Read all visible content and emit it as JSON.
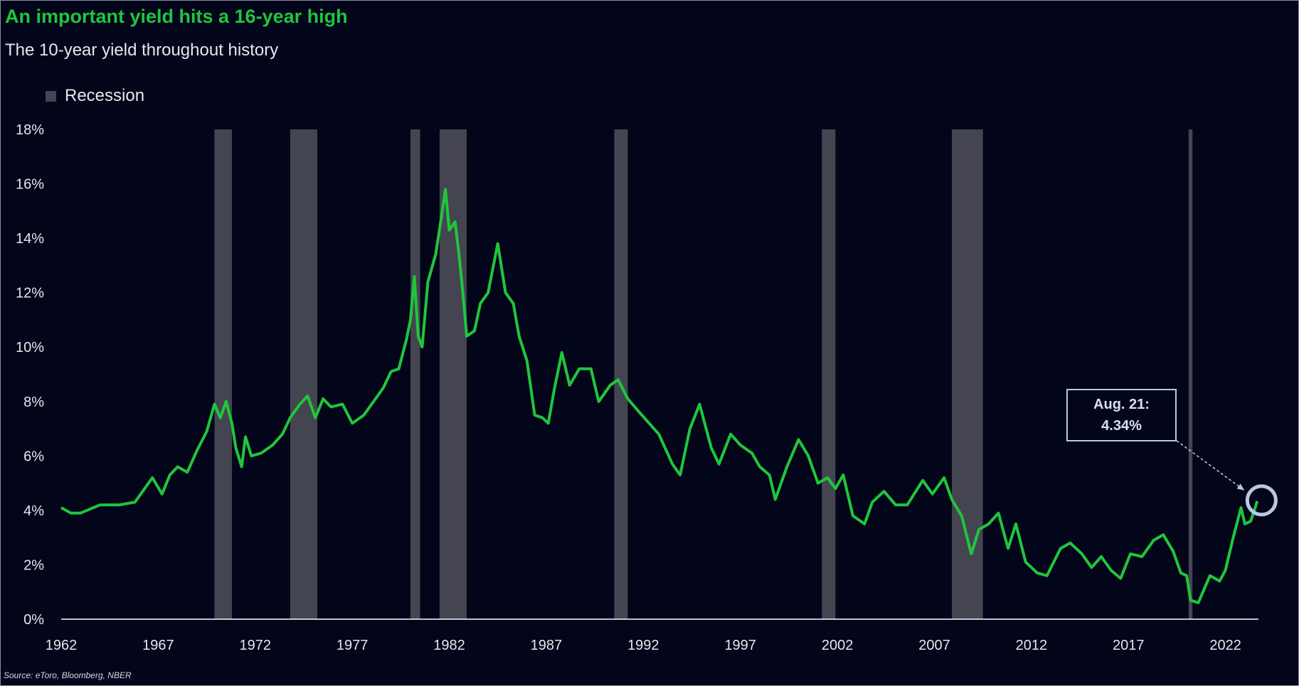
{
  "header": {
    "title": "An important yield hits a 16-year high",
    "subtitle": "The 10-year yield throughout history"
  },
  "legend": {
    "recession_label": "Recession"
  },
  "source": "Source: eToro, Bloomberg, NBER",
  "annotation": {
    "line1": "Aug. 21:",
    "line2": "4.34%"
  },
  "colors": {
    "background": "#03051a",
    "line": "#1fc63b",
    "recession": "#444550",
    "annotation": "#b8c9e3",
    "text": "#e6e7ee"
  },
  "chart_data": {
    "type": "line",
    "title": "An important yield hits a 16-year high",
    "subtitle": "The 10-year yield throughout history",
    "xlim": [
      1962.0,
      2023.7
    ],
    "ylim": [
      0,
      18
    ],
    "x_ticks": [
      1962,
      1967,
      1972,
      1977,
      1982,
      1987,
      1992,
      1997,
      2002,
      2007,
      2012,
      2017,
      2022
    ],
    "y_ticks": [
      0,
      2,
      4,
      6,
      8,
      10,
      12,
      14,
      16,
      18
    ],
    "y_tick_labels": [
      "0%",
      "2%",
      "4%",
      "6%",
      "8%",
      "10%",
      "12%",
      "14%",
      "16%",
      "18%"
    ],
    "grid": false,
    "legend_position": "top-left",
    "recessions": [
      [
        1969.9,
        1970.8
      ],
      [
        1973.8,
        1975.2
      ],
      [
        1980.0,
        1980.5
      ],
      [
        1981.5,
        1982.9
      ],
      [
        1990.5,
        1991.2
      ],
      [
        2001.2,
        2001.9
      ],
      [
        2007.9,
        2009.5
      ],
      [
        2020.1,
        2020.3
      ]
    ],
    "series": [
      {
        "points": [
          [
            1962.0,
            4.1
          ],
          [
            1962.5,
            3.9
          ],
          [
            1963.0,
            3.9
          ],
          [
            1964.0,
            4.2
          ],
          [
            1965.0,
            4.2
          ],
          [
            1965.8,
            4.3
          ],
          [
            1966.3,
            4.8
          ],
          [
            1966.7,
            5.2
          ],
          [
            1967.2,
            4.6
          ],
          [
            1967.6,
            5.3
          ],
          [
            1968.0,
            5.6
          ],
          [
            1968.5,
            5.4
          ],
          [
            1969.0,
            6.2
          ],
          [
            1969.5,
            6.9
          ],
          [
            1969.9,
            7.9
          ],
          [
            1970.2,
            7.4
          ],
          [
            1970.5,
            8.0
          ],
          [
            1970.8,
            7.2
          ],
          [
            1971.0,
            6.3
          ],
          [
            1971.3,
            5.6
          ],
          [
            1971.5,
            6.7
          ],
          [
            1971.8,
            6.0
          ],
          [
            1972.3,
            6.1
          ],
          [
            1972.9,
            6.4
          ],
          [
            1973.4,
            6.8
          ],
          [
            1973.8,
            7.4
          ],
          [
            1974.3,
            7.9
          ],
          [
            1974.7,
            8.2
          ],
          [
            1975.1,
            7.4
          ],
          [
            1975.5,
            8.1
          ],
          [
            1975.9,
            7.8
          ],
          [
            1976.5,
            7.9
          ],
          [
            1977.0,
            7.2
          ],
          [
            1977.6,
            7.5
          ],
          [
            1978.0,
            7.9
          ],
          [
            1978.6,
            8.5
          ],
          [
            1979.0,
            9.1
          ],
          [
            1979.4,
            9.2
          ],
          [
            1979.8,
            10.3
          ],
          [
            1980.0,
            11.0
          ],
          [
            1980.2,
            12.6
          ],
          [
            1980.4,
            10.4
          ],
          [
            1980.6,
            10.0
          ],
          [
            1980.9,
            12.4
          ],
          [
            1981.3,
            13.4
          ],
          [
            1981.6,
            14.8
          ],
          [
            1981.8,
            15.8
          ],
          [
            1982.0,
            14.3
          ],
          [
            1982.3,
            14.6
          ],
          [
            1982.5,
            13.4
          ],
          [
            1982.7,
            12.0
          ],
          [
            1982.9,
            10.4
          ],
          [
            1983.3,
            10.6
          ],
          [
            1983.6,
            11.6
          ],
          [
            1984.0,
            12.0
          ],
          [
            1984.5,
            13.8
          ],
          [
            1984.9,
            12.0
          ],
          [
            1985.3,
            11.6
          ],
          [
            1985.6,
            10.4
          ],
          [
            1986.0,
            9.5
          ],
          [
            1986.4,
            7.5
          ],
          [
            1986.8,
            7.4
          ],
          [
            1987.1,
            7.2
          ],
          [
            1987.4,
            8.4
          ],
          [
            1987.8,
            9.8
          ],
          [
            1988.2,
            8.6
          ],
          [
            1988.7,
            9.2
          ],
          [
            1989.3,
            9.2
          ],
          [
            1989.7,
            8.0
          ],
          [
            1990.3,
            8.6
          ],
          [
            1990.7,
            8.8
          ],
          [
            1991.2,
            8.1
          ],
          [
            1991.8,
            7.6
          ],
          [
            1992.3,
            7.2
          ],
          [
            1992.8,
            6.8
          ],
          [
            1993.5,
            5.7
          ],
          [
            1993.9,
            5.3
          ],
          [
            1994.4,
            7.0
          ],
          [
            1994.9,
            7.9
          ],
          [
            1995.5,
            6.3
          ],
          [
            1995.9,
            5.7
          ],
          [
            1996.5,
            6.8
          ],
          [
            1997.0,
            6.4
          ],
          [
            1997.6,
            6.1
          ],
          [
            1998.0,
            5.6
          ],
          [
            1998.5,
            5.3
          ],
          [
            1998.8,
            4.4
          ],
          [
            1999.4,
            5.6
          ],
          [
            2000.0,
            6.6
          ],
          [
            2000.5,
            6.0
          ],
          [
            2001.0,
            5.0
          ],
          [
            2001.5,
            5.2
          ],
          [
            2001.9,
            4.8
          ],
          [
            2002.3,
            5.3
          ],
          [
            2002.8,
            3.8
          ],
          [
            2003.4,
            3.5
          ],
          [
            2003.8,
            4.3
          ],
          [
            2004.4,
            4.7
          ],
          [
            2005.0,
            4.2
          ],
          [
            2005.6,
            4.2
          ],
          [
            2006.4,
            5.1
          ],
          [
            2006.9,
            4.6
          ],
          [
            2007.5,
            5.2
          ],
          [
            2007.9,
            4.4
          ],
          [
            2008.4,
            3.8
          ],
          [
            2008.9,
            2.4
          ],
          [
            2009.3,
            3.3
          ],
          [
            2009.8,
            3.5
          ],
          [
            2010.3,
            3.9
          ],
          [
            2010.8,
            2.6
          ],
          [
            2011.2,
            3.5
          ],
          [
            2011.7,
            2.1
          ],
          [
            2012.3,
            1.7
          ],
          [
            2012.8,
            1.6
          ],
          [
            2013.5,
            2.6
          ],
          [
            2014.0,
            2.8
          ],
          [
            2014.6,
            2.4
          ],
          [
            2015.1,
            1.9
          ],
          [
            2015.6,
            2.3
          ],
          [
            2016.1,
            1.8
          ],
          [
            2016.6,
            1.5
          ],
          [
            2017.1,
            2.4
          ],
          [
            2017.7,
            2.3
          ],
          [
            2018.3,
            2.9
          ],
          [
            2018.8,
            3.1
          ],
          [
            2019.3,
            2.5
          ],
          [
            2019.7,
            1.7
          ],
          [
            2020.0,
            1.6
          ],
          [
            2020.2,
            0.7
          ],
          [
            2020.6,
            0.6
          ],
          [
            2021.2,
            1.6
          ],
          [
            2021.7,
            1.4
          ],
          [
            2022.0,
            1.8
          ],
          [
            2022.4,
            3.0
          ],
          [
            2022.8,
            4.1
          ],
          [
            2023.0,
            3.5
          ],
          [
            2023.3,
            3.6
          ],
          [
            2023.64,
            4.34
          ]
        ]
      }
    ]
  }
}
